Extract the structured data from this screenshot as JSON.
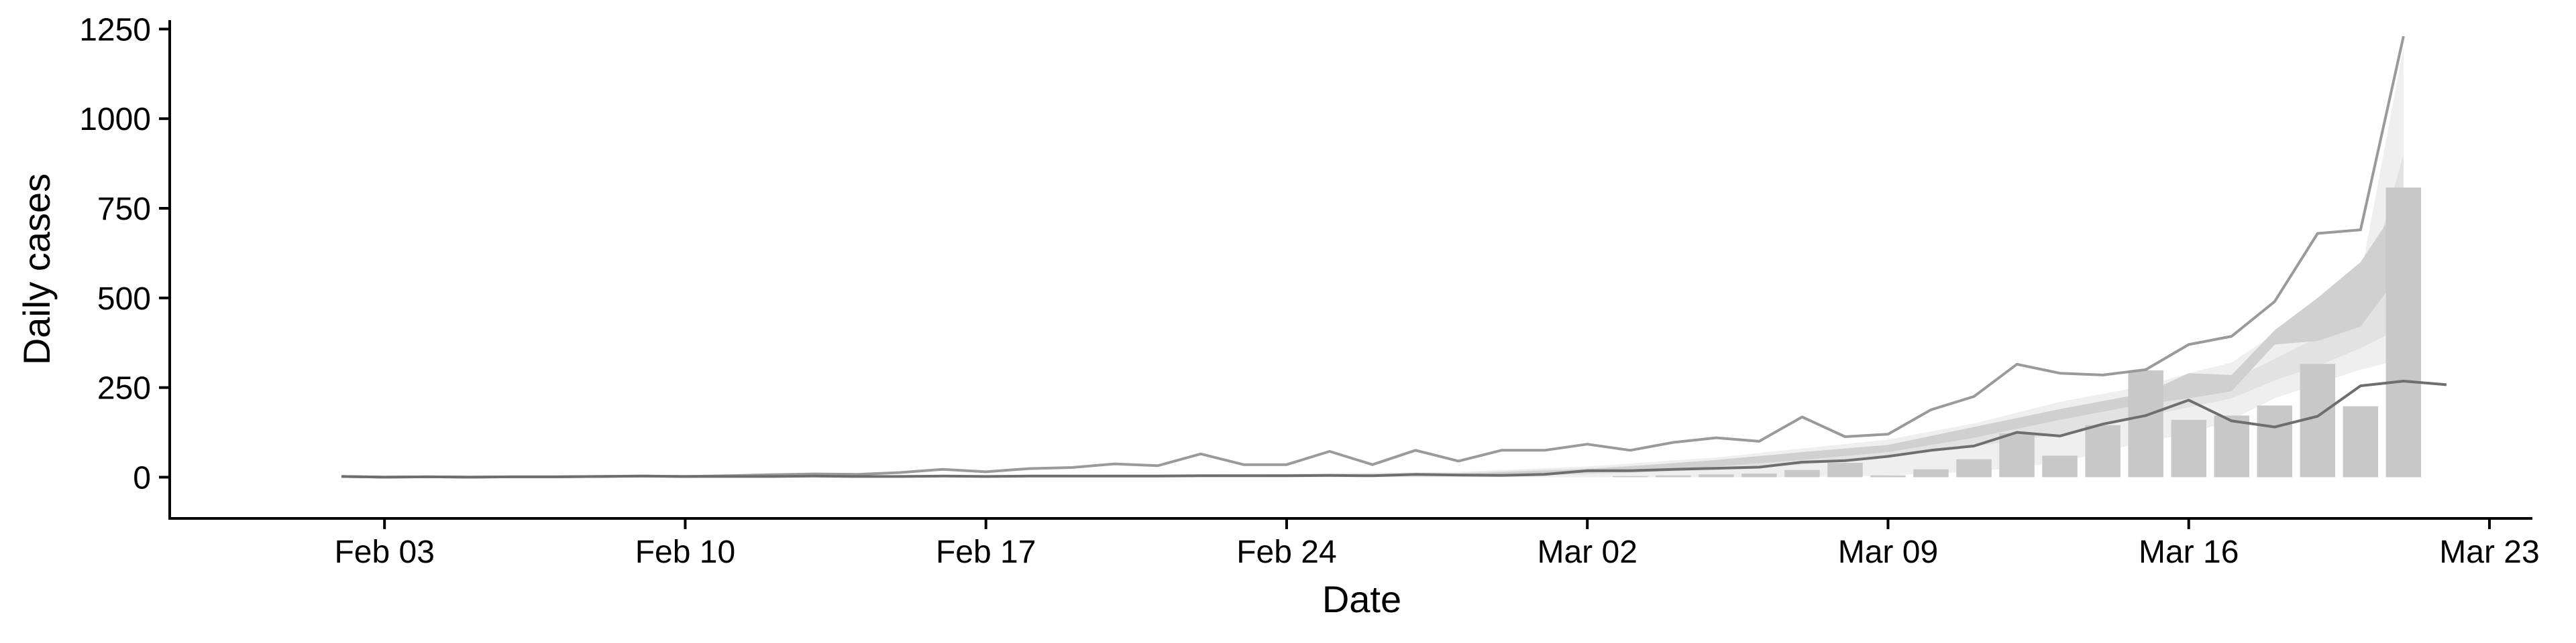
{
  "chart_data": {
    "type": "bar",
    "xlabel": "Date",
    "ylabel": "Daily cases",
    "x_range": [
      "2020-01-29",
      "2020-03-24"
    ],
    "ylim": [
      -115,
      1275
    ],
    "x_ticks": [
      {
        "date": "2020-02-03",
        "label": "Feb 03"
      },
      {
        "date": "2020-02-10",
        "label": "Feb 10"
      },
      {
        "date": "2020-02-17",
        "label": "Feb 17"
      },
      {
        "date": "2020-02-24",
        "label": "Feb 24"
      },
      {
        "date": "2020-03-02",
        "label": "Mar 02"
      },
      {
        "date": "2020-03-09",
        "label": "Mar 09"
      },
      {
        "date": "2020-03-16",
        "label": "Mar 16"
      },
      {
        "date": "2020-03-23",
        "label": "Mar 23"
      }
    ],
    "y_ticks": [
      {
        "value": 0,
        "label": "0"
      },
      {
        "value": 250,
        "label": "250"
      },
      {
        "value": 500,
        "label": "500"
      },
      {
        "value": 750,
        "label": "750"
      },
      {
        "value": 1000,
        "label": "1000"
      },
      {
        "value": 1250,
        "label": "1250"
      }
    ],
    "grid": false,
    "colors": {
      "bars": "#c8c8c8",
      "ribbon_outer": "#efefef",
      "ribbon_mid": "#e2e2e2",
      "ribbon_inner": "#d0d0d0",
      "upper_line": "#9a9a9a",
      "lower_line": "#6e6e6e",
      "axis": "#000000"
    },
    "bars": [
      {
        "date": "2020-03-03",
        "value": 3
      },
      {
        "date": "2020-03-04",
        "value": 5
      },
      {
        "date": "2020-03-05",
        "value": 8
      },
      {
        "date": "2020-03-06",
        "value": 10
      },
      {
        "date": "2020-03-07",
        "value": 20
      },
      {
        "date": "2020-03-08",
        "value": 40
      },
      {
        "date": "2020-03-09",
        "value": 5
      },
      {
        "date": "2020-03-10",
        "value": 22
      },
      {
        "date": "2020-03-11",
        "value": 50
      },
      {
        "date": "2020-03-12",
        "value": 122
      },
      {
        "date": "2020-03-13",
        "value": 60
      },
      {
        "date": "2020-03-14",
        "value": 145
      },
      {
        "date": "2020-03-15",
        "value": 298
      },
      {
        "date": "2020-03-16",
        "value": 160
      },
      {
        "date": "2020-03-17",
        "value": 172
      },
      {
        "date": "2020-03-18",
        "value": 200
      },
      {
        "date": "2020-03-19",
        "value": 316
      },
      {
        "date": "2020-03-20",
        "value": 198
      },
      {
        "date": "2020-03-21",
        "value": 808
      }
    ],
    "estimate_bands": {
      "dates": [
        "2020-02-02",
        "2020-02-05",
        "2020-02-10",
        "2020-02-15",
        "2020-02-20",
        "2020-02-24",
        "2020-02-28",
        "2020-03-02",
        "2020-03-05",
        "2020-03-07",
        "2020-03-09",
        "2020-03-11",
        "2020-03-13",
        "2020-03-15",
        "2020-03-16",
        "2020-03-17",
        "2020-03-18",
        "2020-03-19",
        "2020-03-20",
        "2020-03-21"
      ],
      "outer_low": [
        0,
        0,
        0,
        0,
        0,
        0,
        0,
        0,
        0,
        0,
        5,
        15,
        40,
        100,
        120,
        160,
        220,
        260,
        300,
        330
      ],
      "outer_high": [
        0,
        0,
        2,
        5,
        8,
        10,
        15,
        30,
        55,
        80,
        105,
        150,
        210,
        255,
        290,
        320,
        400,
        460,
        560,
        1200
      ],
      "mid_low": [
        0,
        0,
        0,
        0,
        0,
        0,
        2,
        8,
        20,
        35,
        55,
        85,
        120,
        170,
        195,
        220,
        270,
        310,
        360,
        420
      ],
      "mid_high": [
        0,
        0,
        1,
        3,
        5,
        8,
        12,
        25,
        45,
        65,
        85,
        125,
        175,
        220,
        245,
        270,
        330,
        390,
        470,
        900
      ],
      "inner_low": [
        0,
        0,
        0,
        1,
        2,
        3,
        5,
        12,
        30,
        48,
        70,
        110,
        160,
        205,
        220,
        240,
        370,
        380,
        420,
        580
      ],
      "inner_high": [
        0,
        0,
        1,
        2,
        4,
        6,
        10,
        22,
        48,
        70,
        90,
        140,
        190,
        235,
        290,
        285,
        410,
        500,
        600,
        780
      ]
    },
    "series": [
      {
        "values": [
          {
            "date": "2020-02-02",
            "value": 2
          },
          {
            "date": "2020-02-03",
            "value": 0
          },
          {
            "date": "2020-02-04",
            "value": 1
          },
          {
            "date": "2020-02-05",
            "value": 0
          },
          {
            "date": "2020-02-06",
            "value": 1
          },
          {
            "date": "2020-02-07",
            "value": 1
          },
          {
            "date": "2020-02-08",
            "value": 2
          },
          {
            "date": "2020-02-09",
            "value": 3
          },
          {
            "date": "2020-02-10",
            "value": 2
          },
          {
            "date": "2020-02-11",
            "value": 4
          },
          {
            "date": "2020-02-12",
            "value": 7
          },
          {
            "date": "2020-02-13",
            "value": 9
          },
          {
            "date": "2020-02-14",
            "value": 8
          },
          {
            "date": "2020-02-15",
            "value": 13
          },
          {
            "date": "2020-02-16",
            "value": 22
          },
          {
            "date": "2020-02-17",
            "value": 15
          },
          {
            "date": "2020-02-18",
            "value": 24
          },
          {
            "date": "2020-02-19",
            "value": 27
          },
          {
            "date": "2020-02-20",
            "value": 37
          },
          {
            "date": "2020-02-21",
            "value": 32
          },
          {
            "date": "2020-02-22",
            "value": 65
          },
          {
            "date": "2020-02-23",
            "value": 35
          },
          {
            "date": "2020-02-24",
            "value": 35
          },
          {
            "date": "2020-02-25",
            "value": 72
          },
          {
            "date": "2020-02-26",
            "value": 35
          },
          {
            "date": "2020-02-27",
            "value": 75
          },
          {
            "date": "2020-02-28",
            "value": 45
          },
          {
            "date": "2020-02-29",
            "value": 75
          },
          {
            "date": "2020-03-01",
            "value": 75
          },
          {
            "date": "2020-03-02",
            "value": 92
          },
          {
            "date": "2020-03-03",
            "value": 75
          },
          {
            "date": "2020-03-04",
            "value": 97
          },
          {
            "date": "2020-03-05",
            "value": 110
          },
          {
            "date": "2020-03-06",
            "value": 100
          },
          {
            "date": "2020-03-07",
            "value": 168
          },
          {
            "date": "2020-03-08",
            "value": 113
          },
          {
            "date": "2020-03-09",
            "value": 120
          },
          {
            "date": "2020-03-10",
            "value": 188
          },
          {
            "date": "2020-03-11",
            "value": 225
          },
          {
            "date": "2020-03-12",
            "value": 315
          },
          {
            "date": "2020-03-13",
            "value": 290
          },
          {
            "date": "2020-03-14",
            "value": 285
          },
          {
            "date": "2020-03-15",
            "value": 300
          },
          {
            "date": "2020-03-16",
            "value": 370
          },
          {
            "date": "2020-03-17",
            "value": 393
          },
          {
            "date": "2020-03-18",
            "value": 490
          },
          {
            "date": "2020-03-19",
            "value": 680
          },
          {
            "date": "2020-03-20",
            "value": 690
          },
          {
            "date": "2020-03-21",
            "value": 1230
          }
        ]
      },
      {
        "values": [
          {
            "date": "2020-02-02",
            "value": 2
          },
          {
            "date": "2020-02-03",
            "value": 0
          },
          {
            "date": "2020-02-04",
            "value": 1
          },
          {
            "date": "2020-02-05",
            "value": 0
          },
          {
            "date": "2020-02-06",
            "value": 1
          },
          {
            "date": "2020-02-07",
            "value": 1
          },
          {
            "date": "2020-02-08",
            "value": 2
          },
          {
            "date": "2020-02-09",
            "value": 3
          },
          {
            "date": "2020-02-10",
            "value": 2
          },
          {
            "date": "2020-02-11",
            "value": 2
          },
          {
            "date": "2020-02-12",
            "value": 2
          },
          {
            "date": "2020-02-13",
            "value": 3
          },
          {
            "date": "2020-02-14",
            "value": 2
          },
          {
            "date": "2020-02-15",
            "value": 2
          },
          {
            "date": "2020-02-16",
            "value": 3
          },
          {
            "date": "2020-02-17",
            "value": 2
          },
          {
            "date": "2020-02-18",
            "value": 3
          },
          {
            "date": "2020-02-19",
            "value": 3
          },
          {
            "date": "2020-02-20",
            "value": 3
          },
          {
            "date": "2020-02-21",
            "value": 3
          },
          {
            "date": "2020-02-22",
            "value": 4
          },
          {
            "date": "2020-02-23",
            "value": 4
          },
          {
            "date": "2020-02-24",
            "value": 4
          },
          {
            "date": "2020-02-25",
            "value": 5
          },
          {
            "date": "2020-02-26",
            "value": 4
          },
          {
            "date": "2020-02-27",
            "value": 8
          },
          {
            "date": "2020-02-28",
            "value": 6
          },
          {
            "date": "2020-02-29",
            "value": 5
          },
          {
            "date": "2020-03-01",
            "value": 8
          },
          {
            "date": "2020-03-02",
            "value": 18
          },
          {
            "date": "2020-03-03",
            "value": 18
          },
          {
            "date": "2020-03-04",
            "value": 22
          },
          {
            "date": "2020-03-05",
            "value": 25
          },
          {
            "date": "2020-03-06",
            "value": 28
          },
          {
            "date": "2020-03-07",
            "value": 42
          },
          {
            "date": "2020-03-08",
            "value": 46
          },
          {
            "date": "2020-03-09",
            "value": 58
          },
          {
            "date": "2020-03-10",
            "value": 75
          },
          {
            "date": "2020-03-11",
            "value": 87
          },
          {
            "date": "2020-03-12",
            "value": 125
          },
          {
            "date": "2020-03-13",
            "value": 115
          },
          {
            "date": "2020-03-14",
            "value": 148
          },
          {
            "date": "2020-03-15",
            "value": 172
          },
          {
            "date": "2020-03-16",
            "value": 215
          },
          {
            "date": "2020-03-17",
            "value": 157
          },
          {
            "date": "2020-03-18",
            "value": 140
          },
          {
            "date": "2020-03-19",
            "value": 170
          },
          {
            "date": "2020-03-20",
            "value": 255
          },
          {
            "date": "2020-03-21",
            "value": 268
          },
          {
            "date": "2020-03-22",
            "value": 258
          }
        ]
      }
    ]
  }
}
